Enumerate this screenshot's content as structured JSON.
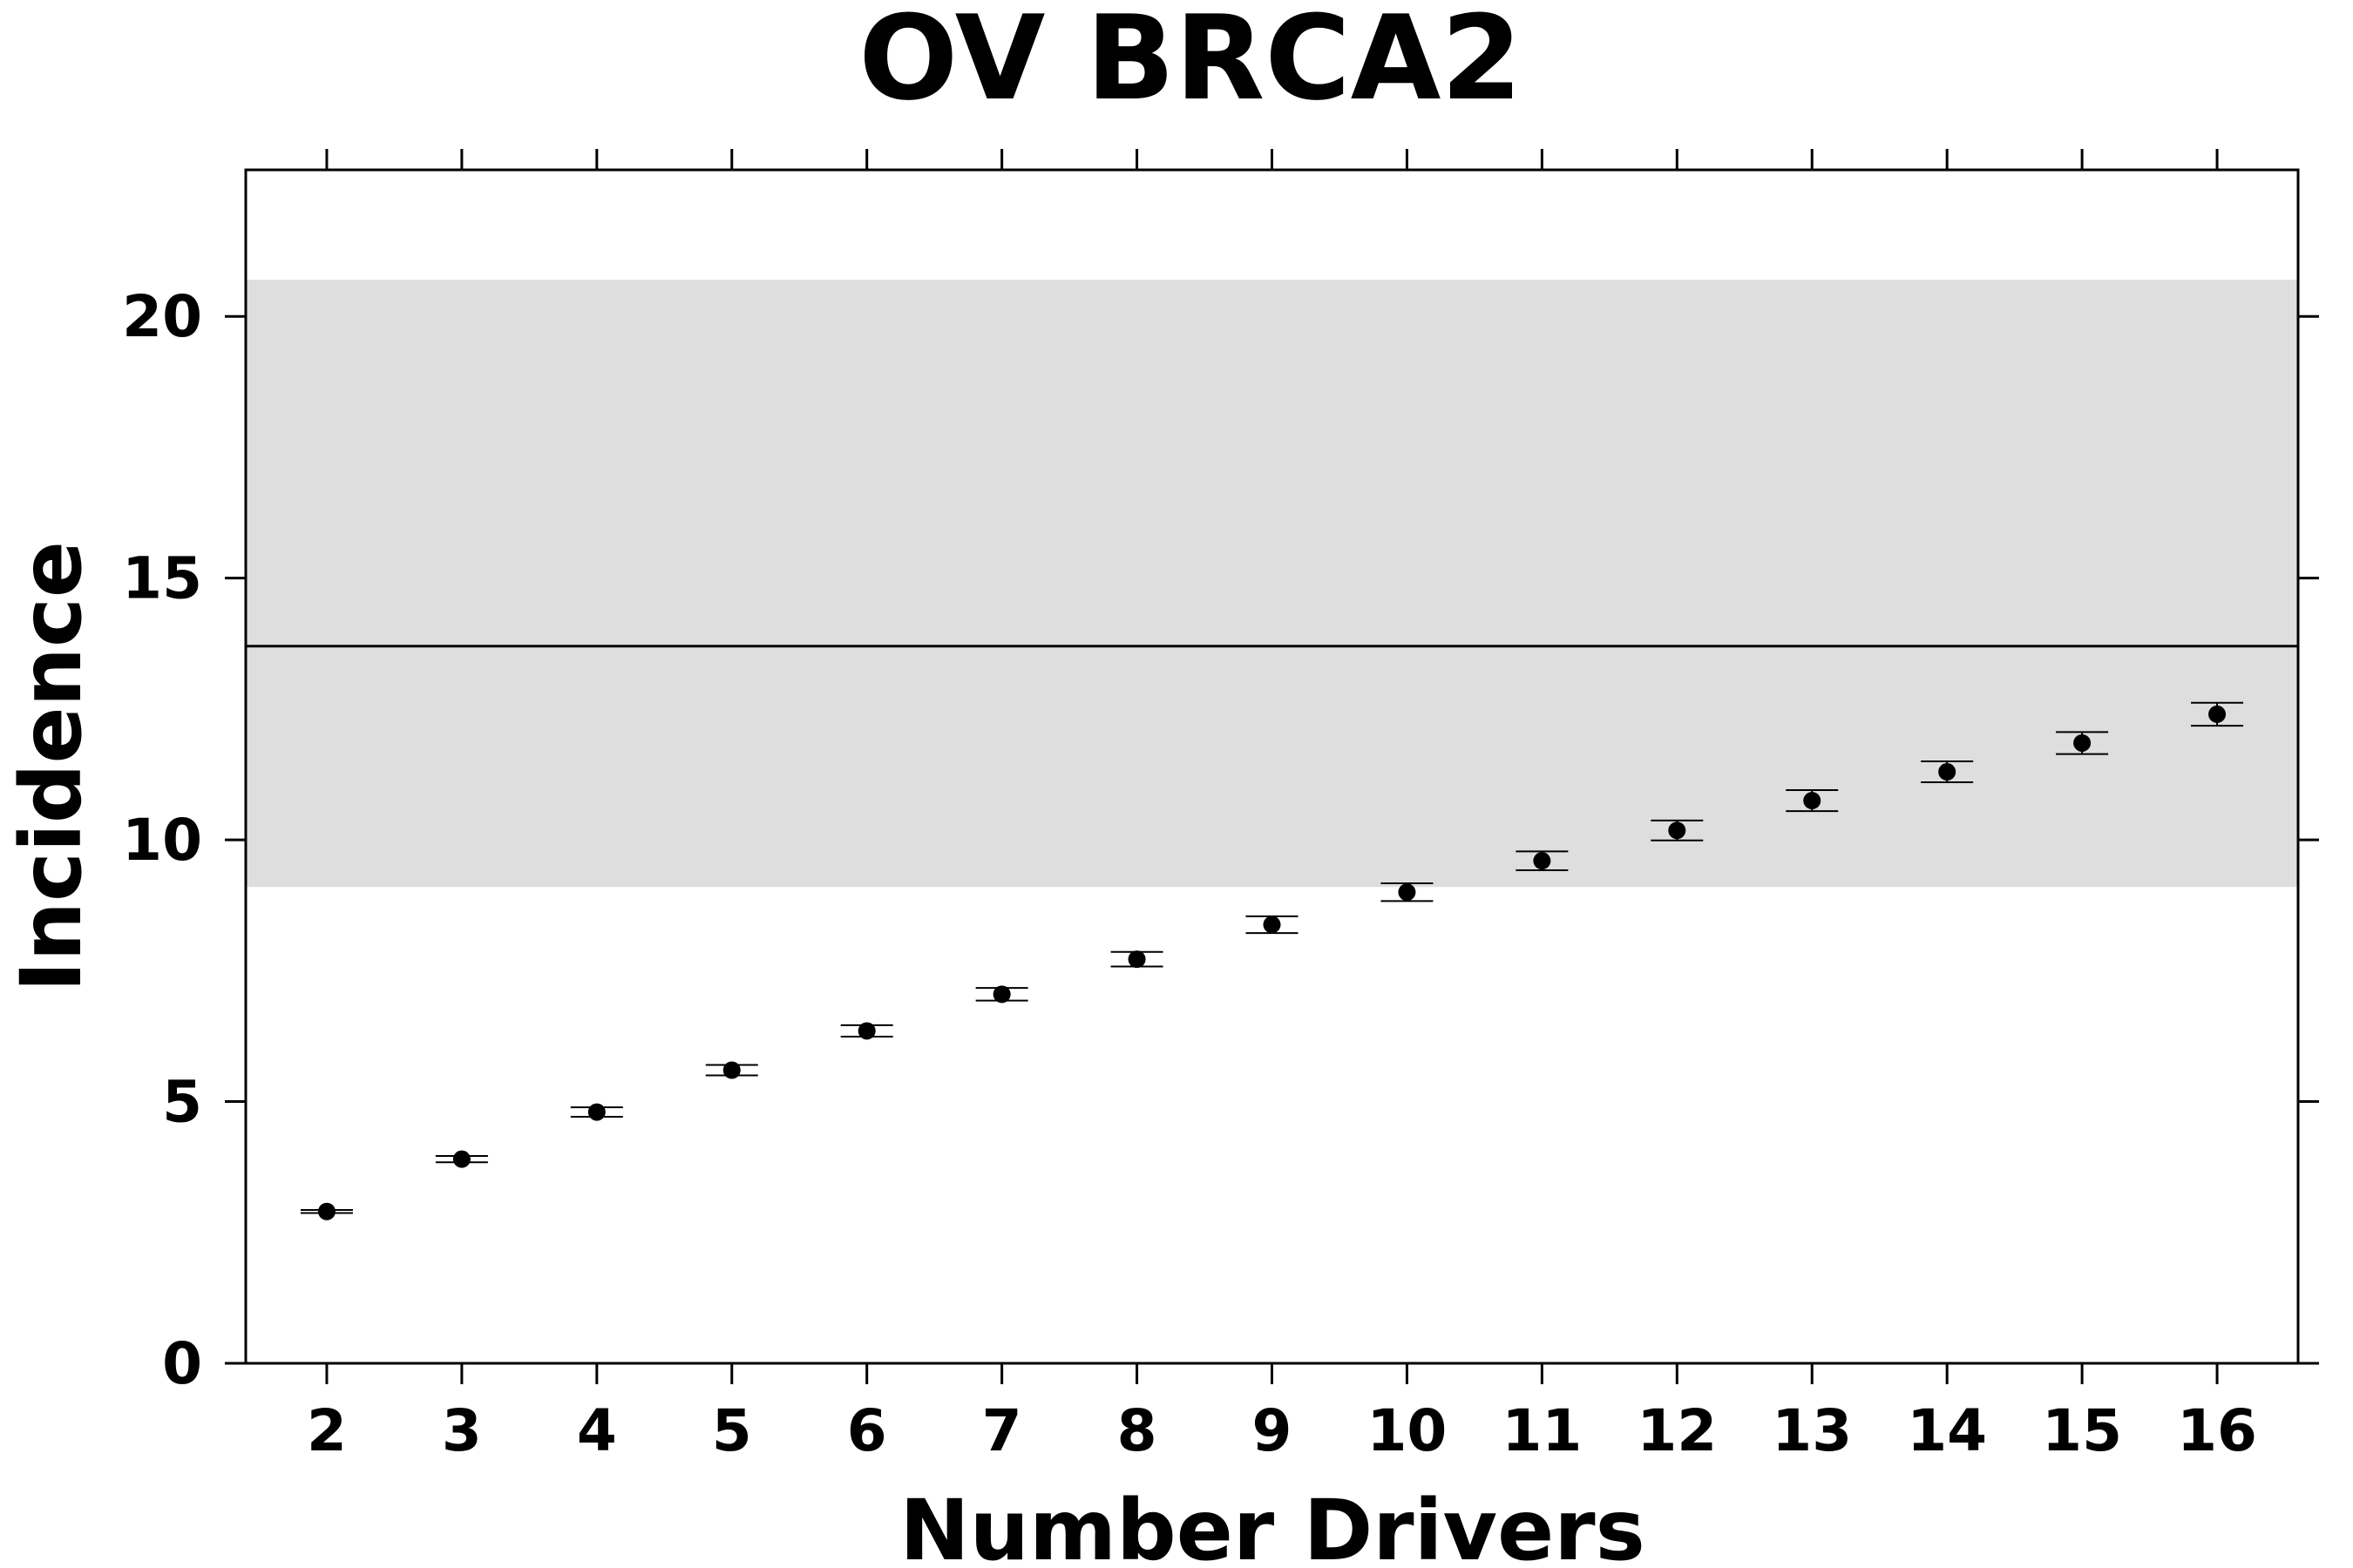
{
  "chart_data": {
    "type": "scatter",
    "title": "OV BRCA2",
    "xlabel": "Number Drivers",
    "ylabel": "Incidence",
    "xlim": [
      1.4,
      16.6
    ],
    "ylim": [
      0,
      22.8
    ],
    "x_ticks": [
      "2",
      "3",
      "4",
      "5",
      "6",
      "7",
      "8",
      "9",
      "10",
      "11",
      "12",
      "13",
      "14",
      "15",
      "16"
    ],
    "y_ticks": [
      "0",
      "5",
      "10",
      "15",
      "20"
    ],
    "reference_line": {
      "y": 13.7
    },
    "reference_band": {
      "y_low": 9.1,
      "y_high": 20.7
    },
    "series": [
      {
        "x": [
          2,
          3,
          4,
          5,
          6,
          7,
          8,
          9,
          10,
          11,
          12,
          13,
          14,
          15,
          16
        ],
        "y": [
          2.9,
          3.9,
          4.8,
          5.6,
          6.35,
          7.05,
          7.72,
          8.38,
          9.0,
          9.6,
          10.18,
          10.75,
          11.3,
          11.85,
          12.4
        ],
        "err_low": [
          2.87,
          3.84,
          4.71,
          5.5,
          6.24,
          6.93,
          7.58,
          8.22,
          8.83,
          9.42,
          9.99,
          10.55,
          11.1,
          11.64,
          12.18
        ],
        "err_high": [
          2.93,
          3.96,
          4.89,
          5.7,
          6.46,
          7.17,
          7.86,
          8.54,
          9.17,
          9.78,
          10.37,
          10.95,
          11.5,
          12.06,
          12.62
        ]
      }
    ]
  },
  "colors": {
    "band": "#dedede",
    "points": "#000000",
    "axis": "#000000"
  }
}
